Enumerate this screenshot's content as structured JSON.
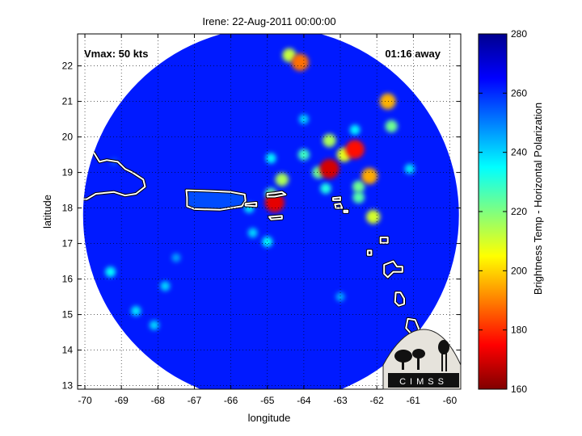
{
  "chart_data": {
    "type": "heatmap",
    "title": "Irene: 22-Aug-2011 00:00:00",
    "xlabel": "longitude",
    "ylabel": "latitude",
    "xlim": [
      -70.2,
      -59.7
    ],
    "ylim": [
      12.9,
      22.9
    ],
    "x_ticks": [
      -70,
      -69,
      -68,
      -67,
      -66,
      -65,
      -64,
      -63,
      -62,
      -61,
      -60
    ],
    "y_ticks": [
      13,
      14,
      15,
      16,
      17,
      18,
      19,
      20,
      21,
      22
    ],
    "grid": "dotted",
    "annotations": {
      "vmax": "Vmax: 50 kts",
      "time_away": "01:16 away"
    },
    "colorbar": {
      "label": "Brightness Temp - Horizontal Polarization",
      "range": [
        160,
        280
      ],
      "ticks": [
        160,
        180,
        200,
        220,
        240,
        260,
        280
      ],
      "colormap": "jet"
    },
    "swath": {
      "center": [
        -64.9,
        17.8
      ],
      "radius_deg": 5.15,
      "background_value": 262
    },
    "features": [
      {
        "x": -64.8,
        "y": 18.15,
        "value": 172
      },
      {
        "x": -64.6,
        "y": 18.8,
        "value": 215
      },
      {
        "x": -64.9,
        "y": 18.4,
        "value": 225
      },
      {
        "x": -65.5,
        "y": 18.0,
        "value": 238
      },
      {
        "x": -65.4,
        "y": 17.3,
        "value": 240
      },
      {
        "x": -65.0,
        "y": 17.05,
        "value": 235
      },
      {
        "x": -63.3,
        "y": 19.1,
        "value": 170
      },
      {
        "x": -62.6,
        "y": 19.65,
        "value": 176
      },
      {
        "x": -62.2,
        "y": 18.9,
        "value": 195
      },
      {
        "x": -62.9,
        "y": 19.5,
        "value": 208
      },
      {
        "x": -63.6,
        "y": 19.0,
        "value": 222
      },
      {
        "x": -64.0,
        "y": 19.5,
        "value": 228
      },
      {
        "x": -62.5,
        "y": 18.3,
        "value": 225
      },
      {
        "x": -63.4,
        "y": 18.55,
        "value": 232
      },
      {
        "x": -63.3,
        "y": 19.9,
        "value": 215
      },
      {
        "x": -62.1,
        "y": 17.75,
        "value": 210
      },
      {
        "x": -62.5,
        "y": 18.6,
        "value": 222
      },
      {
        "x": -64.1,
        "y": 22.1,
        "value": 188
      },
      {
        "x": -64.4,
        "y": 22.3,
        "value": 212
      },
      {
        "x": -61.7,
        "y": 21.0,
        "value": 196
      },
      {
        "x": -61.6,
        "y": 20.3,
        "value": 222
      },
      {
        "x": -62.6,
        "y": 20.2,
        "value": 236
      },
      {
        "x": -64.0,
        "y": 20.5,
        "value": 240
      },
      {
        "x": -61.1,
        "y": 19.1,
        "value": 238
      },
      {
        "x": -64.9,
        "y": 19.4,
        "value": 236
      },
      {
        "x": -69.3,
        "y": 16.2,
        "value": 235
      },
      {
        "x": -68.6,
        "y": 15.1,
        "value": 238
      },
      {
        "x": -68.1,
        "y": 14.7,
        "value": 240
      },
      {
        "x": -67.8,
        "y": 15.8,
        "value": 240
      },
      {
        "x": -63.0,
        "y": 15.5,
        "value": 245
      },
      {
        "x": -67.5,
        "y": 16.6,
        "value": 246
      },
      {
        "x": -69.2,
        "y": 19.3,
        "value": 256
      }
    ],
    "coastlines": [
      {
        "name": "Hispaniola",
        "points": [
          [
            -70.2,
            19.75
          ],
          [
            -70.05,
            19.8
          ],
          [
            -69.95,
            19.7
          ],
          [
            -69.75,
            19.55
          ],
          [
            -69.6,
            19.3
          ],
          [
            -69.4,
            19.35
          ],
          [
            -69.1,
            19.3
          ],
          [
            -68.9,
            19.1
          ],
          [
            -68.7,
            19.0
          ],
          [
            -68.4,
            18.8
          ],
          [
            -68.35,
            18.6
          ],
          [
            -68.6,
            18.4
          ],
          [
            -68.9,
            18.35
          ],
          [
            -69.2,
            18.45
          ],
          [
            -69.7,
            18.4
          ],
          [
            -69.95,
            18.25
          ],
          [
            -70.2,
            18.25
          ]
        ]
      },
      {
        "name": "Puerto Rico",
        "points": [
          [
            -67.22,
            18.5
          ],
          [
            -66.6,
            18.48
          ],
          [
            -66.0,
            18.45
          ],
          [
            -65.62,
            18.38
          ],
          [
            -65.6,
            18.2
          ],
          [
            -65.7,
            18.05
          ],
          [
            -66.3,
            17.95
          ],
          [
            -67.0,
            17.97
          ],
          [
            -67.2,
            18.05
          ],
          [
            -67.2,
            18.3
          ]
        ]
      },
      {
        "name": "Vieques",
        "points": [
          [
            -65.6,
            18.12
          ],
          [
            -65.3,
            18.15
          ],
          [
            -65.3,
            18.05
          ],
          [
            -65.6,
            18.07
          ]
        ]
      },
      {
        "name": "Virgin Islands",
        "points": [
          [
            -65.0,
            18.4
          ],
          [
            -64.8,
            18.42
          ],
          [
            -64.6,
            18.45
          ],
          [
            -64.5,
            18.38
          ],
          [
            -64.8,
            18.32
          ],
          [
            -65.0,
            18.32
          ]
        ]
      },
      {
        "name": "St Croix",
        "points": [
          [
            -64.95,
            17.75
          ],
          [
            -64.6,
            17.78
          ],
          [
            -64.6,
            17.7
          ],
          [
            -64.9,
            17.68
          ]
        ]
      },
      {
        "name": "Anguilla",
        "points": [
          [
            -63.2,
            18.28
          ],
          [
            -63.0,
            18.3
          ],
          [
            -63.0,
            18.22
          ],
          [
            -63.2,
            18.22
          ]
        ]
      },
      {
        "name": "St Martin",
        "points": [
          [
            -63.15,
            18.1
          ],
          [
            -63.0,
            18.12
          ],
          [
            -62.95,
            18.0
          ],
          [
            -63.12,
            18.0
          ]
        ]
      },
      {
        "name": "St Barts",
        "points": [
          [
            -62.9,
            17.93
          ],
          [
            -62.8,
            17.93
          ],
          [
            -62.8,
            17.88
          ],
          [
            -62.9,
            17.88
          ]
        ]
      },
      {
        "name": "Antigua",
        "points": [
          [
            -61.9,
            17.17
          ],
          [
            -61.7,
            17.17
          ],
          [
            -61.7,
            17.02
          ],
          [
            -61.9,
            17.02
          ]
        ]
      },
      {
        "name": "Guadeloupe",
        "points": [
          [
            -61.8,
            16.4
          ],
          [
            -61.55,
            16.5
          ],
          [
            -61.45,
            16.35
          ],
          [
            -61.3,
            16.35
          ],
          [
            -61.3,
            16.2
          ],
          [
            -61.55,
            16.2
          ],
          [
            -61.7,
            16.05
          ],
          [
            -61.8,
            16.15
          ]
        ]
      },
      {
        "name": "Montserrat",
        "points": [
          [
            -62.25,
            16.8
          ],
          [
            -62.15,
            16.8
          ],
          [
            -62.15,
            16.68
          ],
          [
            -62.25,
            16.68
          ]
        ]
      },
      {
        "name": "Dominica",
        "points": [
          [
            -61.48,
            15.62
          ],
          [
            -61.35,
            15.62
          ],
          [
            -61.25,
            15.45
          ],
          [
            -61.25,
            15.3
          ],
          [
            -61.4,
            15.25
          ],
          [
            -61.5,
            15.35
          ]
        ]
      },
      {
        "name": "Martinique",
        "points": [
          [
            -61.15,
            14.88
          ],
          [
            -60.95,
            14.85
          ],
          [
            -60.85,
            14.6
          ],
          [
            -60.9,
            14.45
          ],
          [
            -61.05,
            14.45
          ],
          [
            -61.2,
            14.62
          ]
        ]
      }
    ]
  }
}
